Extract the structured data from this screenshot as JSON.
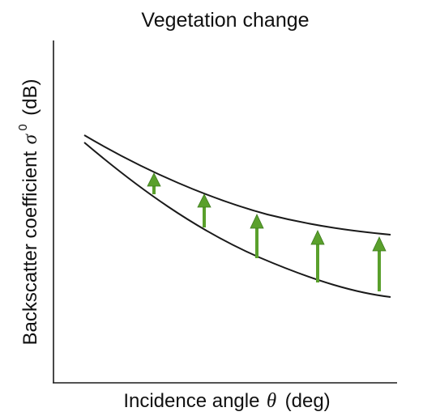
{
  "title": "Vegetation change",
  "x_axis": {
    "label_before": "Incidence angle",
    "symbol": "θ",
    "label_after": "(deg)"
  },
  "y_axis": {
    "label_before": "Backscatter coefficient",
    "symbol": "σ",
    "superscript": "0",
    "label_after": "(dB)"
  },
  "colors": {
    "curve": "#1a1a1a",
    "axis": "#1a1a1a",
    "arrow": "#5aa02c",
    "arrow_outline": "#3c7a1c"
  },
  "curves": {
    "lower": "before-change",
    "upper": "after-change"
  },
  "arrows": {
    "count": 5,
    "direction": "up",
    "meaning": "increase in backscatter coefficient"
  }
}
